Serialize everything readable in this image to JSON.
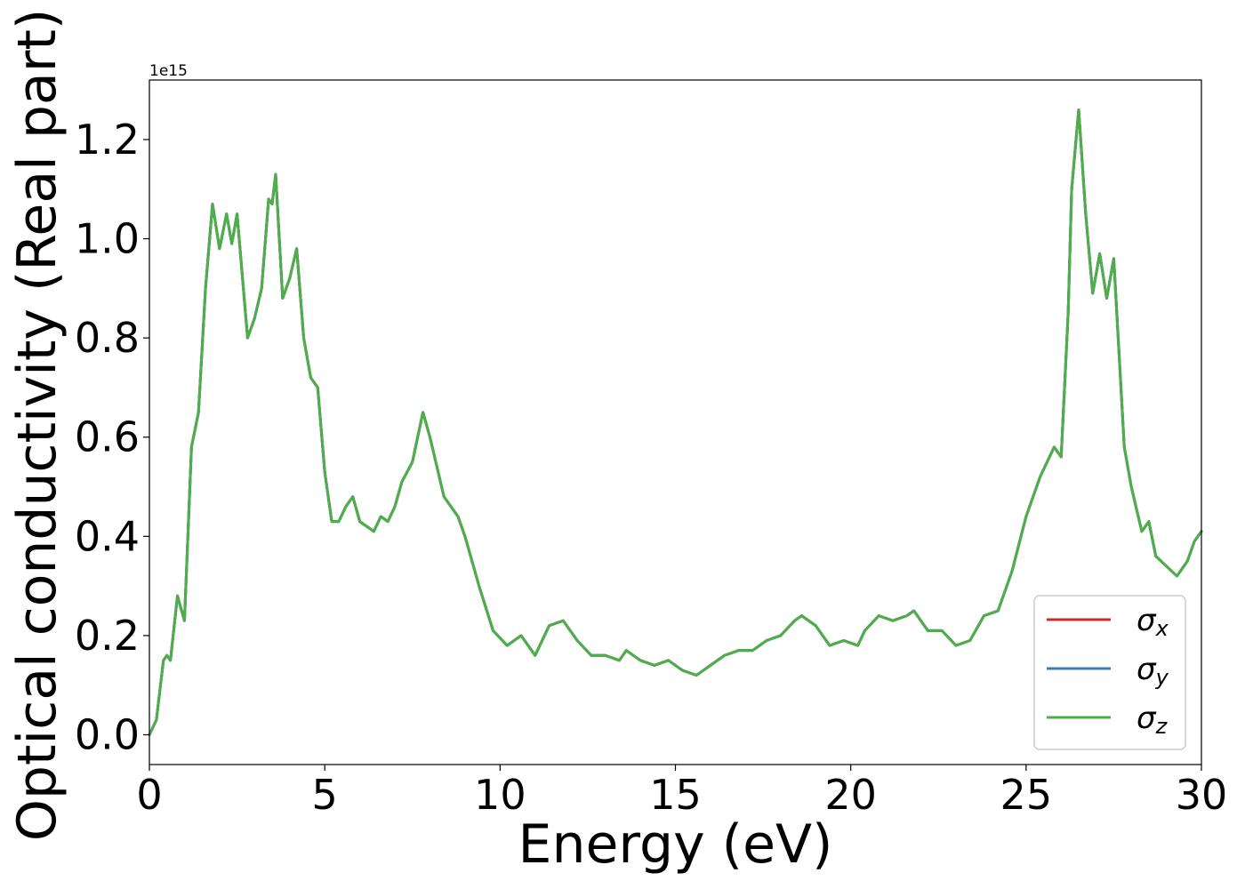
{
  "chart_data": {
    "type": "line",
    "title": "",
    "xlabel": "Energy (eV)",
    "ylabel": "Optical conductivity (Real part)",
    "y_offset_label": "1e15",
    "xlim": [
      0,
      30
    ],
    "ylim": [
      -0.06,
      1.32
    ],
    "x_ticks": [
      0,
      5,
      10,
      15,
      20,
      25,
      30
    ],
    "x_tick_labels": [
      "0",
      "5",
      "10",
      "15",
      "20",
      "25",
      "30"
    ],
    "y_ticks": [
      0.0,
      0.2,
      0.4,
      0.6,
      0.8,
      1.0,
      1.2
    ],
    "y_tick_labels": [
      "0.0",
      "0.2",
      "0.4",
      "0.6",
      "0.8",
      "1.0",
      "1.2"
    ],
    "grid": false,
    "legend_position": "bottom-right",
    "x": [
      0,
      0.2,
      0.4,
      0.5,
      0.6,
      0.8,
      1.0,
      1.2,
      1.4,
      1.6,
      1.8,
      2.0,
      2.2,
      2.35,
      2.5,
      2.8,
      3.0,
      3.2,
      3.4,
      3.5,
      3.6,
      3.8,
      4.0,
      4.2,
      4.4,
      4.6,
      4.8,
      5.0,
      5.2,
      5.4,
      5.6,
      5.8,
      6.0,
      6.4,
      6.6,
      6.8,
      7.0,
      7.2,
      7.5,
      7.8,
      8.0,
      8.4,
      8.8,
      9.0,
      9.4,
      9.8,
      10.2,
      10.6,
      11.0,
      11.4,
      11.8,
      12.2,
      12.6,
      13.0,
      13.4,
      13.6,
      14.0,
      14.4,
      14.8,
      15.2,
      15.6,
      16.0,
      16.4,
      16.8,
      17.2,
      17.6,
      18.0,
      18.4,
      18.6,
      19.0,
      19.4,
      19.8,
      20.2,
      20.4,
      20.8,
      21.2,
      21.6,
      21.8,
      22.2,
      22.6,
      23.0,
      23.4,
      23.8,
      24.2,
      24.6,
      25.0,
      25.4,
      25.6,
      25.8,
      26.0,
      26.2,
      26.3,
      26.5,
      26.7,
      26.9,
      27.1,
      27.3,
      27.5,
      27.8,
      28.0,
      28.3,
      28.5,
      28.7,
      29.0,
      29.3,
      29.6,
      29.8,
      30.0
    ],
    "series": [
      {
        "name": "σx",
        "color": "#d62728",
        "values": [
          0.0,
          0.03,
          0.15,
          0.16,
          0.15,
          0.28,
          0.23,
          0.58,
          0.65,
          0.9,
          1.07,
          0.98,
          1.05,
          0.99,
          1.05,
          0.8,
          0.84,
          0.9,
          1.08,
          1.07,
          1.13,
          0.88,
          0.92,
          0.98,
          0.8,
          0.72,
          0.7,
          0.53,
          0.43,
          0.43,
          0.46,
          0.48,
          0.43,
          0.41,
          0.44,
          0.43,
          0.46,
          0.51,
          0.55,
          0.65,
          0.6,
          0.48,
          0.44,
          0.4,
          0.3,
          0.21,
          0.18,
          0.2,
          0.16,
          0.22,
          0.23,
          0.19,
          0.16,
          0.16,
          0.15,
          0.17,
          0.15,
          0.14,
          0.15,
          0.13,
          0.12,
          0.14,
          0.16,
          0.17,
          0.17,
          0.19,
          0.2,
          0.23,
          0.24,
          0.22,
          0.18,
          0.19,
          0.18,
          0.21,
          0.24,
          0.23,
          0.24,
          0.25,
          0.21,
          0.21,
          0.18,
          0.19,
          0.24,
          0.25,
          0.33,
          0.44,
          0.52,
          0.55,
          0.58,
          0.56,
          0.85,
          1.1,
          1.26,
          1.05,
          0.89,
          0.97,
          0.88,
          0.96,
          0.58,
          0.5,
          0.41,
          0.43,
          0.36,
          0.34,
          0.32,
          0.35,
          0.39,
          0.41
        ]
      },
      {
        "name": "σy",
        "color": "#377eb8",
        "values": [
          0.0,
          0.03,
          0.15,
          0.16,
          0.15,
          0.28,
          0.23,
          0.58,
          0.65,
          0.9,
          1.07,
          0.98,
          1.05,
          0.99,
          1.05,
          0.8,
          0.84,
          0.9,
          1.08,
          1.07,
          1.13,
          0.88,
          0.92,
          0.98,
          0.8,
          0.72,
          0.7,
          0.53,
          0.43,
          0.43,
          0.46,
          0.48,
          0.43,
          0.41,
          0.44,
          0.43,
          0.46,
          0.51,
          0.55,
          0.65,
          0.6,
          0.48,
          0.44,
          0.4,
          0.3,
          0.21,
          0.18,
          0.2,
          0.16,
          0.22,
          0.23,
          0.19,
          0.16,
          0.16,
          0.15,
          0.17,
          0.15,
          0.14,
          0.15,
          0.13,
          0.12,
          0.14,
          0.16,
          0.17,
          0.17,
          0.19,
          0.2,
          0.23,
          0.24,
          0.22,
          0.18,
          0.19,
          0.18,
          0.21,
          0.24,
          0.23,
          0.24,
          0.25,
          0.21,
          0.21,
          0.18,
          0.19,
          0.24,
          0.25,
          0.33,
          0.44,
          0.52,
          0.55,
          0.58,
          0.56,
          0.85,
          1.1,
          1.26,
          1.05,
          0.89,
          0.97,
          0.88,
          0.96,
          0.58,
          0.5,
          0.41,
          0.43,
          0.36,
          0.34,
          0.32,
          0.35,
          0.39,
          0.41
        ]
      },
      {
        "name": "σz",
        "color": "#4daf4a",
        "values": [
          0.0,
          0.03,
          0.15,
          0.16,
          0.15,
          0.28,
          0.23,
          0.58,
          0.65,
          0.9,
          1.07,
          0.98,
          1.05,
          0.99,
          1.05,
          0.8,
          0.84,
          0.9,
          1.08,
          1.07,
          1.13,
          0.88,
          0.92,
          0.98,
          0.8,
          0.72,
          0.7,
          0.53,
          0.43,
          0.43,
          0.46,
          0.48,
          0.43,
          0.41,
          0.44,
          0.43,
          0.46,
          0.51,
          0.55,
          0.65,
          0.6,
          0.48,
          0.44,
          0.4,
          0.3,
          0.21,
          0.18,
          0.2,
          0.16,
          0.22,
          0.23,
          0.19,
          0.16,
          0.16,
          0.15,
          0.17,
          0.15,
          0.14,
          0.15,
          0.13,
          0.12,
          0.14,
          0.16,
          0.17,
          0.17,
          0.19,
          0.2,
          0.23,
          0.24,
          0.22,
          0.18,
          0.19,
          0.18,
          0.21,
          0.24,
          0.23,
          0.24,
          0.25,
          0.21,
          0.21,
          0.18,
          0.19,
          0.24,
          0.25,
          0.33,
          0.44,
          0.52,
          0.55,
          0.58,
          0.56,
          0.85,
          1.1,
          1.26,
          1.05,
          0.89,
          0.97,
          0.88,
          0.96,
          0.58,
          0.5,
          0.41,
          0.43,
          0.36,
          0.34,
          0.32,
          0.35,
          0.39,
          0.41
        ]
      }
    ],
    "legend": [
      {
        "symbol": "σ",
        "subscript": "x",
        "color": "#d62728"
      },
      {
        "symbol": "σ",
        "subscript": "y",
        "color": "#377eb8"
      },
      {
        "symbol": "σ",
        "subscript": "z",
        "color": "#4daf4a"
      }
    ]
  }
}
